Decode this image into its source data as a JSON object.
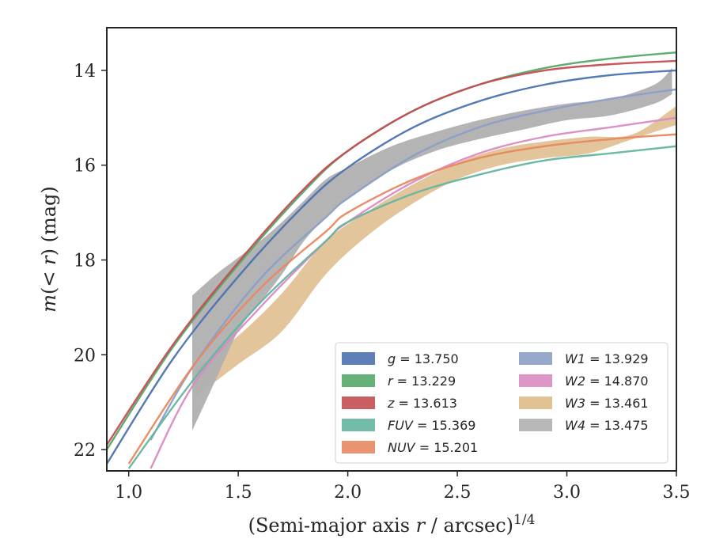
{
  "chart_data": {
    "type": "line",
    "title": "",
    "xlabel_main": "(Semi-major axis ",
    "xlabel_var": "r",
    "xlabel_tail": " / arcsec)",
    "xlabel_exp": "1/4",
    "ylabel_pre": "m(< ",
    "ylabel_var": "r",
    "ylabel_post": ") (mag)",
    "xlim": [
      0.9,
      3.5
    ],
    "ylim": [
      22.45,
      13.1
    ],
    "y_inverted": true,
    "xticks": [
      1.0,
      1.5,
      2.0,
      2.5,
      3.0,
      3.5
    ],
    "xtick_labels": [
      "1.0",
      "1.5",
      "2.0",
      "2.5",
      "3.0",
      "3.5"
    ],
    "yticks": [
      14,
      16,
      18,
      20,
      22
    ],
    "ytick_labels": [
      "14",
      "16",
      "18",
      "20",
      "22"
    ],
    "legend_position": "lower-right",
    "series": [
      {
        "name": "g",
        "total": "13.750",
        "color": "#4c72b0",
        "kind": "line",
        "x": [
          0.9,
          1.2,
          1.5,
          1.8,
          2.0,
          2.3,
          2.6,
          2.9,
          3.2,
          3.5
        ],
        "y": [
          22.3,
          20.1,
          18.35,
          16.85,
          16.05,
          15.2,
          14.65,
          14.3,
          14.1,
          14.0
        ]
      },
      {
        "name": "r",
        "total": "13.229",
        "color": "#55a868",
        "kind": "line",
        "x": [
          0.9,
          1.2,
          1.5,
          1.8,
          2.0,
          2.3,
          2.6,
          2.9,
          3.2,
          3.5
        ],
        "y": [
          22.0,
          19.85,
          18.1,
          16.55,
          15.7,
          14.85,
          14.3,
          13.95,
          13.75,
          13.62
        ]
      },
      {
        "name": "z",
        "total": "13.613",
        "color": "#c44e52",
        "kind": "line",
        "x": [
          0.9,
          1.2,
          1.5,
          1.8,
          2.0,
          2.3,
          2.6,
          2.9,
          3.2,
          3.5
        ],
        "y": [
          21.9,
          19.8,
          18.05,
          16.5,
          15.7,
          14.85,
          14.3,
          14.0,
          13.87,
          13.8
        ]
      },
      {
        "name": "FUV",
        "total": "15.369",
        "color": "#64b5a0",
        "kind": "line",
        "x": [
          1.0,
          1.3,
          1.6,
          1.9,
          2.0,
          2.3,
          2.6,
          2.9,
          3.2,
          3.5
        ],
        "y": [
          22.4,
          20.5,
          18.9,
          17.6,
          17.2,
          16.6,
          16.2,
          15.9,
          15.75,
          15.6
        ]
      },
      {
        "name": "NUV",
        "total": "15.201",
        "color": "#e8885f",
        "kind": "line",
        "x": [
          1.0,
          1.3,
          1.6,
          1.9,
          2.0,
          2.3,
          2.6,
          2.9,
          3.2,
          3.5
        ],
        "y": [
          22.3,
          20.2,
          18.6,
          17.4,
          17.0,
          16.3,
          15.85,
          15.6,
          15.45,
          15.35
        ]
      },
      {
        "name": "W1",
        "total": "13.929",
        "color": "#8c9fc8",
        "kind": "line",
        "x": [
          1.1,
          1.3,
          1.6,
          1.9,
          2.0,
          2.3,
          2.6,
          2.9,
          3.2,
          3.5
        ],
        "y": [
          21.8,
          20.2,
          18.4,
          17.1,
          16.7,
          15.8,
          15.2,
          14.85,
          14.6,
          14.4
        ]
      },
      {
        "name": "W2",
        "total": "14.870",
        "color": "#da8bc3",
        "kind": "line",
        "x": [
          1.1,
          1.3,
          1.6,
          1.9,
          2.0,
          2.3,
          2.6,
          2.9,
          3.2,
          3.5
        ],
        "y": [
          22.4,
          20.6,
          19.0,
          17.6,
          17.2,
          16.35,
          15.75,
          15.4,
          15.2,
          15.0
        ]
      },
      {
        "name": "W3",
        "total": "13.461",
        "color": "#ddbb88",
        "kind": "band",
        "x": [
          1.3,
          1.5,
          1.7,
          1.9,
          2.1,
          2.3,
          2.5,
          2.7,
          2.9,
          3.1,
          3.3,
          3.5
        ],
        "y_low": [
          20.3,
          19.6,
          18.7,
          17.6,
          16.95,
          16.4,
          15.95,
          15.65,
          15.5,
          15.4,
          15.35,
          14.75
        ],
        "y_high": [
          20.9,
          20.2,
          19.5,
          18.3,
          17.45,
          16.8,
          16.3,
          16.0,
          15.85,
          15.75,
          15.45,
          15.15
        ]
      },
      {
        "name": "W4",
        "total": "13.475",
        "color": "#b0b0b0",
        "kind": "band",
        "x": [
          1.29,
          1.4,
          1.5,
          1.6,
          1.7,
          1.8,
          1.9,
          2.0,
          2.2,
          2.4,
          2.6,
          2.8,
          3.0,
          3.2,
          3.4,
          3.48
        ],
        "y_low": [
          18.75,
          18.3,
          17.95,
          17.6,
          17.2,
          16.75,
          16.3,
          16.05,
          15.6,
          15.3,
          15.05,
          14.85,
          14.7,
          14.6,
          14.3,
          13.95
        ],
        "y_high": [
          21.6,
          20.5,
          19.5,
          18.9,
          18.3,
          17.6,
          17.1,
          16.7,
          16.1,
          15.7,
          15.45,
          15.25,
          15.05,
          14.95,
          14.7,
          14.5
        ]
      }
    ]
  }
}
